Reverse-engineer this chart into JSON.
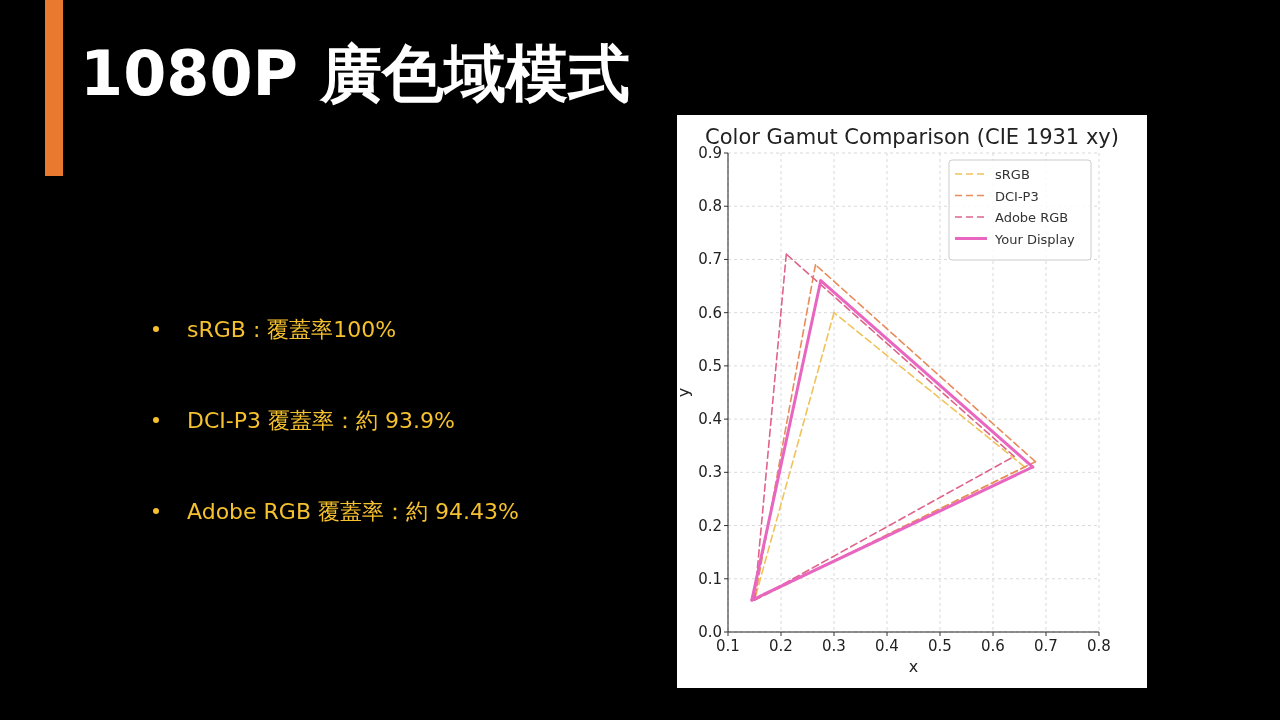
{
  "chart_data": {
    "type": "line",
    "title": "1080P 廣色域模式",
    "subtitle": "Color Gamut Comparison (CIE 1931 xy)",
    "xlabel": "x",
    "ylabel": "y",
    "annotations": [
      "sRGB : 覆蓋率100%",
      "DCI-P3 覆蓋率：約 93.9%",
      "Adobe RGB 覆蓋率：約 94.43%"
    ],
    "xlim": [
      0.1,
      0.8
    ],
    "ylim": [
      0,
      0.9
    ],
    "xticks": [
      0.1,
      0.2,
      0.3,
      0.4,
      0.5,
      0.6,
      0.7,
      0.8
    ],
    "yticks": [
      {
        "value": 0,
        "label": "0.0"
      },
      0.1,
      0.2,
      0.3,
      0.4,
      0.5,
      0.6,
      0.7,
      0.8,
      0.9
    ],
    "grid": true,
    "legend": "top right",
    "series": [
      {
        "name": "sRGB",
        "color": "#f0c25a",
        "line_style": "dashed",
        "x": [
          0.66,
          0.3,
          0.15,
          0.66
        ],
        "values": [
          0.31,
          0.6,
          0.06,
          0.31
        ]
      },
      {
        "name": "DCI-P3",
        "color": "#e88c5c",
        "line_style": "dashed",
        "x": [
          0.68,
          0.265,
          0.15,
          0.68
        ],
        "values": [
          0.32,
          0.69,
          0.06,
          0.32
        ]
      },
      {
        "name": "Adobe RGB",
        "color": "#e0648a",
        "line_style": "dashed",
        "x": [
          0.64,
          0.21,
          0.15,
          0.64
        ],
        "values": [
          0.33,
          0.71,
          0.06,
          0.33
        ]
      },
      {
        "name": "Your Display",
        "color": "#e866c0",
        "line_style": "solid",
        "x": [
          0.675,
          0.275,
          0.145,
          0.675
        ],
        "values": [
          0.31,
          0.66,
          0.06,
          0.31
        ]
      }
    ]
  }
}
